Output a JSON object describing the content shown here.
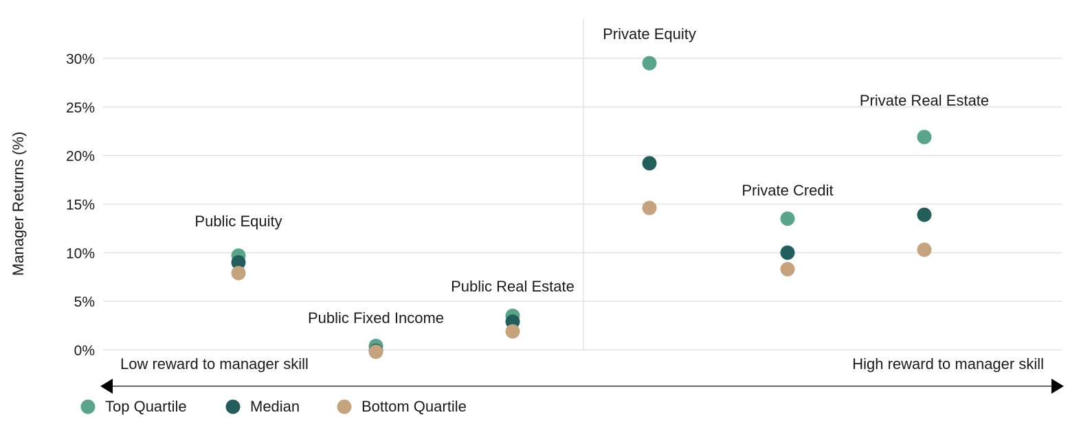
{
  "chart_data": {
    "type": "scatter",
    "ylabel": "Manager Returns (%)",
    "ylim": [
      0,
      30
    ],
    "yticks": [
      0,
      5,
      10,
      15,
      20,
      25,
      30
    ],
    "ytick_labels": [
      "0%",
      "5%",
      "10%",
      "15%",
      "20%",
      "25%",
      "30%"
    ],
    "grid": true,
    "legend_position": "bottom-left",
    "categories": [
      "Public Equity",
      "Public Fixed Income",
      "Public Real Estate",
      "Private Equity",
      "Private Credit",
      "Private Real Estate"
    ],
    "series": [
      {
        "name": "Top Quartile",
        "color": "#5aa38c",
        "values": [
          9.7,
          0.4,
          3.5,
          29.5,
          13.5,
          21.9
        ]
      },
      {
        "name": "Median",
        "color": "#245e5c",
        "values": [
          9.0,
          -0.1,
          2.9,
          19.2,
          10.0,
          13.9
        ]
      },
      {
        "name": "Bottom Quartile",
        "color": "#c4a37e",
        "values": [
          7.9,
          -0.2,
          1.9,
          14.6,
          8.3,
          10.3
        ]
      }
    ],
    "annotations": {
      "low": "Low reward to manager skill",
      "high": "High reward to manager skill"
    }
  }
}
